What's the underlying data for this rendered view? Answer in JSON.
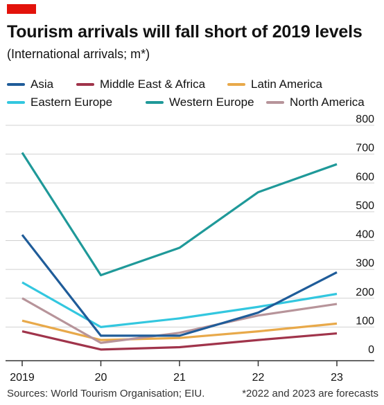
{
  "header": {
    "title": "Tourism arrivals will fall short of 2019 levels",
    "subtitle": "(International arrivals; m*)"
  },
  "footer": {
    "source": "Sources: World Tourism Organisation; EIU.",
    "note": "*2022 and 2023 are forecasts"
  },
  "colors": {
    "accent": "#e3120b",
    "axis": "#333333",
    "grid": "#d0d0d0"
  },
  "chart_data": {
    "type": "line",
    "title": "Tourism arrivals will fall short of 2019 levels",
    "subtitle": "(International arrivals; m*)",
    "x": [
      "2019",
      "20",
      "21",
      "22",
      "23"
    ],
    "ylim": [
      0,
      800
    ],
    "yticks": [
      "0",
      "100",
      "200",
      "300",
      "400",
      "500",
      "600",
      "700",
      "800"
    ],
    "y_axis_side": "right",
    "grid": true,
    "legend_position": "top",
    "series": [
      {
        "name": "Asia",
        "color": "#1f5c99",
        "values": [
          420,
          70,
          70,
          150,
          290
        ]
      },
      {
        "name": "Middle East & Africa",
        "color": "#a0344b",
        "values": [
          85,
          22,
          30,
          55,
          78
        ]
      },
      {
        "name": "Latin America",
        "color": "#e8a94a",
        "values": [
          122,
          55,
          62,
          85,
          112
        ]
      },
      {
        "name": "Eastern Europe",
        "color": "#33c7df",
        "values": [
          255,
          100,
          130,
          170,
          215
        ]
      },
      {
        "name": "Western Europe",
        "color": "#1f9999",
        "values": [
          705,
          280,
          375,
          568,
          665
        ]
      },
      {
        "name": "North America",
        "color": "#b7949a",
        "values": [
          200,
          45,
          80,
          140,
          180
        ]
      }
    ]
  }
}
